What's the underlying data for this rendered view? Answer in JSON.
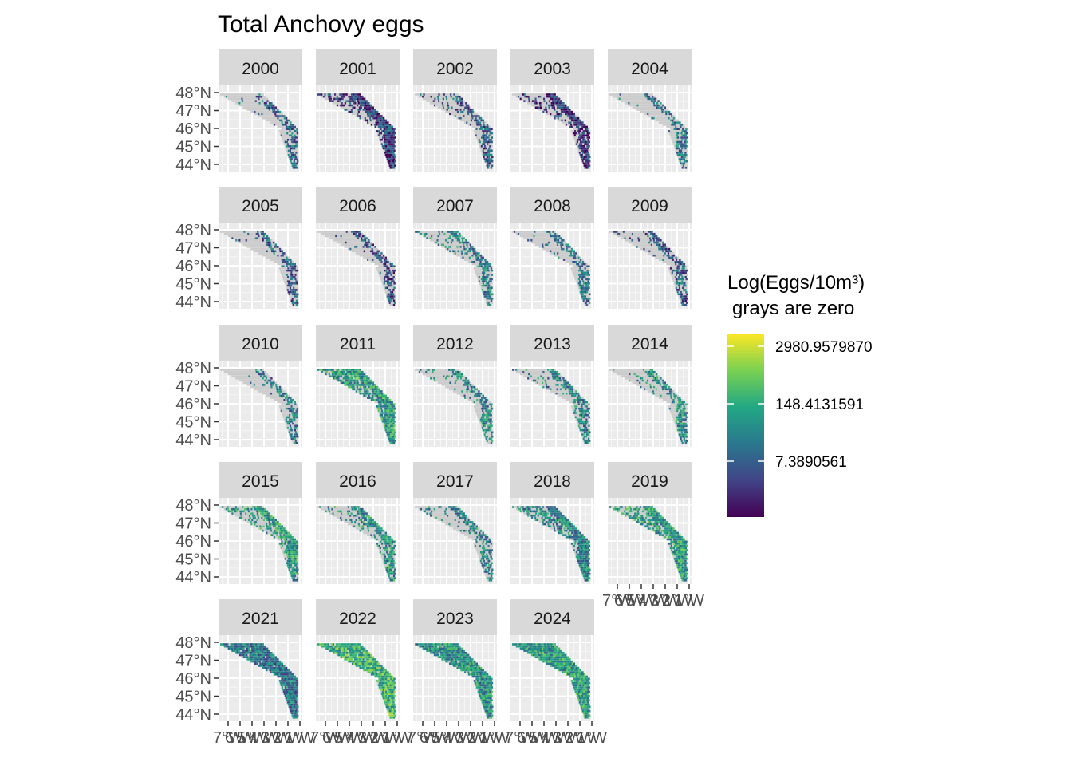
{
  "chart_data": {
    "type": "heatmap",
    "title": "Total Anchovy eggs",
    "facet_variable": "year",
    "panels": [
      "2000",
      "2001",
      "2002",
      "2003",
      "2004",
      "2005",
      "2006",
      "2007",
      "2008",
      "2009",
      "2010",
      "2011",
      "2012",
      "2013",
      "2014",
      "2015",
      "2016",
      "2017",
      "2018",
      "2019",
      "2021",
      "2022",
      "2023",
      "2024"
    ],
    "y_axis": {
      "ticks": [
        48,
        47,
        46,
        45,
        44
      ],
      "tick_labels": [
        "48°N",
        "47°N",
        "46°N",
        "45°N",
        "44°N"
      ],
      "ylim": [
        43.6,
        48.4
      ]
    },
    "x_axis": {
      "ticks": [
        -7,
        -6,
        -5,
        -4,
        -3,
        -2,
        -1
      ],
      "tick_labels": [
        "7°W",
        "6°W",
        "5°W",
        "4°W",
        "3°W",
        "2°W",
        "1°W"
      ],
      "xlim": [
        -7.8,
        -0.8
      ]
    },
    "legend": {
      "title_line1": "Log(Eggs/10m³)",
      "title_line2": "grays are zero",
      "scale": "viridis",
      "breaks": [
        "2980.9579870",
        "148.4131591",
        "7.3890561"
      ],
      "zero_color": "#cccccc",
      "colors": [
        "#440154",
        "#414487",
        "#2a788e",
        "#22a884",
        "#7ad151",
        "#fde725"
      ]
    },
    "panel_intensity": {
      "2000": [
        0.05,
        0.35
      ],
      "2001": [
        0.45,
        0.2
      ],
      "2002": [
        0.15,
        0.3
      ],
      "2003": [
        0.35,
        0.15
      ],
      "2004": [
        0.05,
        0.4
      ],
      "2005": [
        0.05,
        0.3
      ],
      "2006": [
        0.05,
        0.25
      ],
      "2007": [
        0.2,
        0.45
      ],
      "2008": [
        0.1,
        0.4
      ],
      "2009": [
        0.1,
        0.3
      ],
      "2010": [
        0.05,
        0.4
      ],
      "2011": [
        0.8,
        0.55
      ],
      "2012": [
        0.15,
        0.45
      ],
      "2013": [
        0.15,
        0.45
      ],
      "2014": [
        0.15,
        0.5
      ],
      "2015": [
        0.4,
        0.55
      ],
      "2016": [
        0.3,
        0.5
      ],
      "2017": [
        0.15,
        0.45
      ],
      "2018": [
        0.6,
        0.45
      ],
      "2019": [
        0.65,
        0.55
      ],
      "2021": [
        0.95,
        0.4
      ],
      "2022": [
        0.95,
        0.65
      ],
      "2023": [
        0.95,
        0.5
      ],
      "2024": [
        1.0,
        0.55
      ]
    }
  }
}
